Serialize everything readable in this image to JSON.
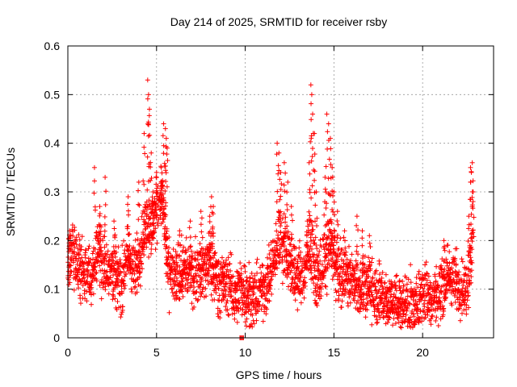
{
  "chart_data": {
    "type": "scatter",
    "title": "Day 214 of 2025, SRMTID for receiver rsby",
    "xlabel": "GPS time / hours",
    "ylabel": "SRMTID / TECUs",
    "xlim": [
      0,
      24
    ],
    "ylim": [
      0,
      0.6
    ],
    "xticks": [
      0,
      5,
      10,
      15,
      20
    ],
    "xtick_labels": [
      "0",
      "5",
      "10",
      "15",
      "20"
    ],
    "yticks": [
      0,
      0.1,
      0.2,
      0.3,
      0.4,
      0.5,
      0.6
    ],
    "ytick_labels": [
      "0",
      "0.1",
      "0.2",
      "0.3",
      "0.4",
      "0.5",
      "0.6"
    ],
    "grid": true,
    "marker": "+",
    "series": [
      {
        "name": "SRMTID",
        "color": "#ff0000",
        "profile_x": [
          0,
          0.2,
          0.6,
          1.0,
          1.4,
          1.7,
          2.0,
          2.4,
          3.0,
          3.4,
          3.8,
          4.1,
          4.4,
          4.7,
          5.0,
          5.3,
          5.6,
          6.0,
          6.5,
          7.0,
          7.5,
          8.0,
          8.5,
          9.0,
          9.5,
          10.0,
          10.5,
          11.0,
          11.5,
          11.9,
          12.3,
          12.8,
          13.3,
          13.7,
          14.0,
          14.5,
          14.8,
          15.2,
          15.7,
          16.3,
          17.0,
          17.5,
          18.0,
          18.5,
          19.0,
          19.5,
          20.0,
          20.5,
          21.0,
          21.4,
          22.0,
          22.5,
          22.8
        ],
        "profile_y": [
          0.15,
          0.18,
          0.15,
          0.13,
          0.12,
          0.2,
          0.14,
          0.15,
          0.11,
          0.17,
          0.13,
          0.18,
          0.24,
          0.22,
          0.26,
          0.3,
          0.14,
          0.12,
          0.14,
          0.13,
          0.14,
          0.15,
          0.12,
          0.11,
          0.09,
          0.1,
          0.08,
          0.1,
          0.14,
          0.2,
          0.18,
          0.13,
          0.13,
          0.18,
          0.12,
          0.16,
          0.2,
          0.13,
          0.13,
          0.11,
          0.1,
          0.09,
          0.08,
          0.07,
          0.07,
          0.06,
          0.09,
          0.08,
          0.1,
          0.13,
          0.11,
          0.1,
          0.18
        ],
        "spikes": [
          [
            0.1,
            0.22
          ],
          [
            1.5,
            0.35
          ],
          [
            1.8,
            0.27
          ],
          [
            2.1,
            0.33
          ],
          [
            3.4,
            0.29
          ],
          [
            4.0,
            0.32
          ],
          [
            4.3,
            0.42
          ],
          [
            4.5,
            0.53
          ],
          [
            4.55,
            0.5
          ],
          [
            4.6,
            0.47
          ],
          [
            4.7,
            0.38
          ],
          [
            4.8,
            0.3
          ],
          [
            5.0,
            0.34
          ],
          [
            5.3,
            0.32
          ],
          [
            5.4,
            0.44
          ],
          [
            5.5,
            0.43
          ],
          [
            5.55,
            0.41
          ],
          [
            5.6,
            0.39
          ],
          [
            6.9,
            0.24
          ],
          [
            7.5,
            0.26
          ],
          [
            8.1,
            0.29
          ],
          [
            8.2,
            0.27
          ],
          [
            11.8,
            0.4
          ],
          [
            11.9,
            0.38
          ],
          [
            12.0,
            0.34
          ],
          [
            12.4,
            0.32
          ],
          [
            12.6,
            0.27
          ],
          [
            13.5,
            0.24
          ],
          [
            13.6,
            0.36
          ],
          [
            13.7,
            0.52
          ],
          [
            13.75,
            0.5
          ],
          [
            13.8,
            0.46
          ],
          [
            13.9,
            0.42
          ],
          [
            14.0,
            0.3
          ],
          [
            14.5,
            0.33
          ],
          [
            14.6,
            0.46
          ],
          [
            14.7,
            0.44
          ],
          [
            14.8,
            0.41
          ],
          [
            14.9,
            0.35
          ],
          [
            15.0,
            0.3
          ],
          [
            16.3,
            0.25
          ],
          [
            16.6,
            0.22
          ],
          [
            17.0,
            0.21
          ],
          [
            21.2,
            0.2
          ],
          [
            22.7,
            0.35
          ],
          [
            22.75,
            0.34
          ],
          [
            22.8,
            0.36
          ],
          [
            22.85,
            0.3
          ],
          [
            22.6,
            0.25
          ],
          [
            9.7,
            0.0
          ],
          [
            9.75,
            0.0
          ],
          [
            9.8,
            0.0
          ],
          [
            9.85,
            0.0
          ],
          [
            9.9,
            0.0
          ],
          [
            8.0,
            0.25
          ],
          [
            6.3,
            0.22
          ],
          [
            2.6,
            0.24
          ],
          [
            15.2,
            0.26
          ],
          [
            15.6,
            0.22
          ],
          [
            12.2,
            0.36
          ]
        ]
      }
    ]
  }
}
